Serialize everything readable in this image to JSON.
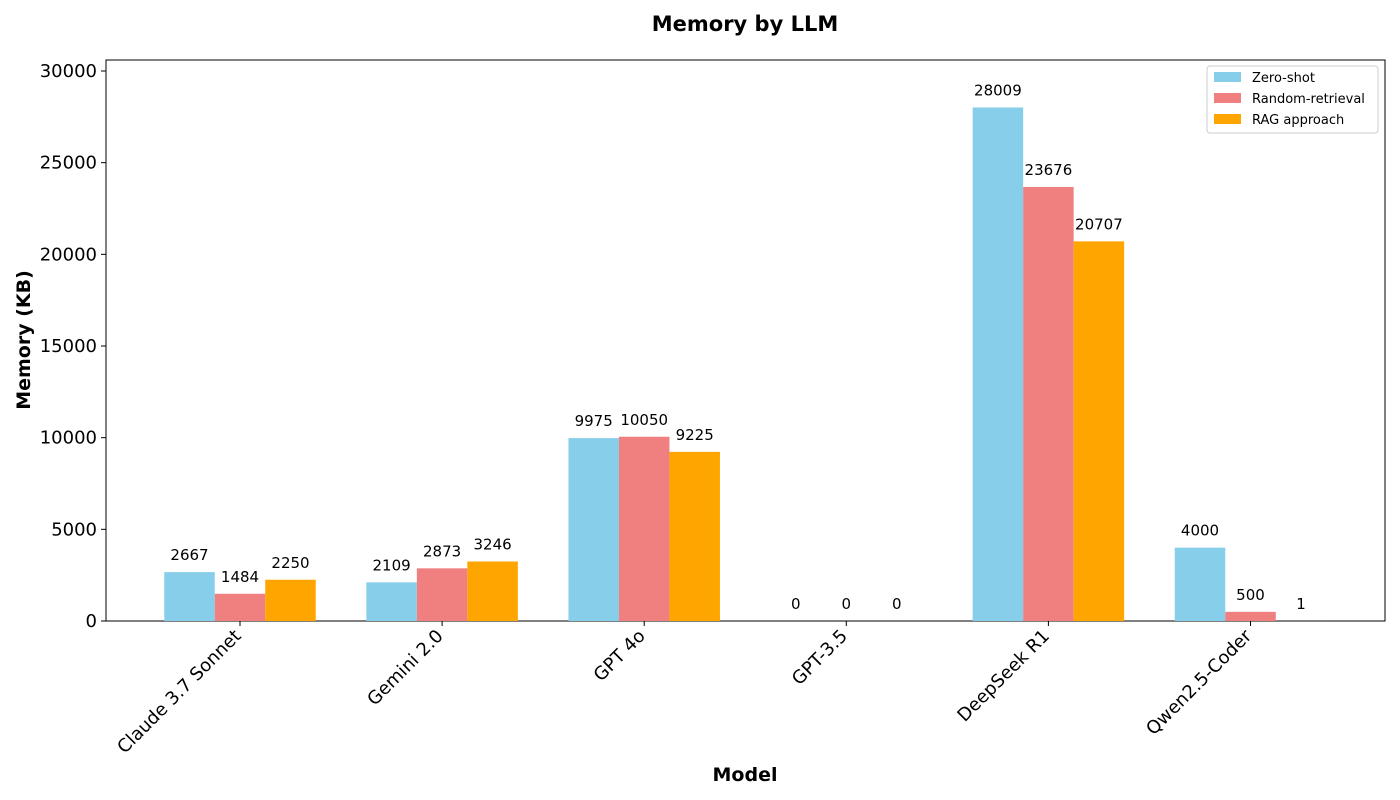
{
  "chart_data": {
    "type": "bar",
    "title": "Memory by LLM",
    "xlabel": "Model",
    "ylabel": "Memory (KB)",
    "categories": [
      "Claude 3.7 Sonnet",
      "Gemini 2.0",
      "GPT 4o",
      "GPT-3.5",
      "DeepSeek R1",
      "Qwen2.5-Coder"
    ],
    "series": [
      {
        "name": "Zero-shot",
        "color": "#87ceeb",
        "values": [
          2667,
          2109,
          9975,
          0,
          28009,
          4000
        ]
      },
      {
        "name": "Random-retrieval",
        "color": "#f08080",
        "values": [
          1484,
          2873,
          10050,
          0,
          23676,
          500
        ]
      },
      {
        "name": "RAG approach",
        "color": "#ffa500",
        "values": [
          2250,
          3246,
          9225,
          0,
          20707,
          1
        ]
      }
    ],
    "ylim": [
      0,
      30000
    ],
    "yticks": [
      0,
      5000,
      10000,
      15000,
      20000,
      25000,
      30000
    ],
    "grid": false,
    "legend_position": "top-right"
  }
}
